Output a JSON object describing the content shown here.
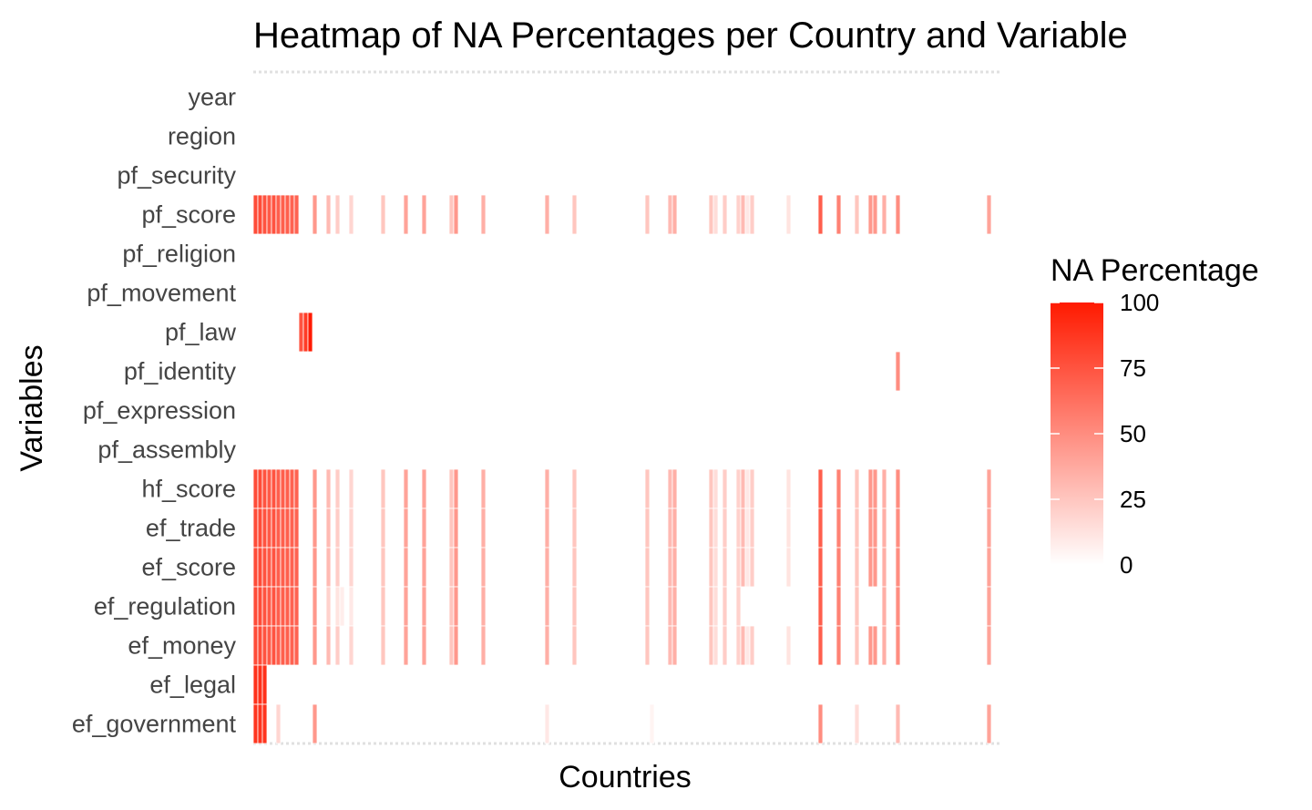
{
  "chart_data": {
    "type": "heatmap",
    "title": "Heatmap of NA Percentages per Country and Variable",
    "xlabel": "Countries",
    "ylabel": "Variables",
    "legend": {
      "title": "NA Percentage",
      "ticks": [
        0,
        25,
        50,
        75,
        100
      ],
      "low_color": "#ffffff",
      "high_color": "#ff1a00",
      "placement": "right"
    },
    "value_range": [
      0,
      100
    ],
    "n_countries": 162,
    "variables": [
      "year",
      "region",
      "pf_security",
      "pf_score",
      "pf_religion",
      "pf_movement",
      "pf_law",
      "pf_identity",
      "pf_expression",
      "pf_assembly",
      "hf_score",
      "ef_trade",
      "ef_score",
      "ef_regulation",
      "ef_money",
      "ef_legal",
      "ef_government"
    ],
    "x_tick_labels_shown": false,
    "grid": false,
    "nonzero_cells": [
      {
        "variable": "pf_score",
        "columns": [
          [
            0,
            1,
            78
          ],
          [
            2,
            2,
            75
          ],
          [
            3,
            3,
            72
          ],
          [
            4,
            4,
            75
          ],
          [
            5,
            5,
            70
          ],
          [
            6,
            6,
            70
          ],
          [
            7,
            7,
            70
          ],
          [
            8,
            8,
            68
          ],
          [
            9,
            9,
            68
          ],
          [
            13,
            13,
            45
          ],
          [
            16,
            16,
            30
          ],
          [
            18,
            18,
            22
          ],
          [
            21,
            21,
            18
          ],
          [
            28,
            28,
            25
          ],
          [
            33,
            33,
            40
          ],
          [
            37,
            37,
            40
          ],
          [
            43,
            43,
            25
          ],
          [
            44,
            44,
            45
          ],
          [
            50,
            50,
            35
          ],
          [
            64,
            64,
            35
          ],
          [
            70,
            70,
            25
          ],
          [
            86,
            86,
            25
          ],
          [
            91,
            91,
            30
          ],
          [
            92,
            92,
            35
          ],
          [
            100,
            100,
            25
          ],
          [
            101,
            101,
            15
          ],
          [
            103,
            103,
            22
          ],
          [
            106,
            106,
            20
          ],
          [
            107,
            107,
            30
          ],
          [
            108,
            108,
            10
          ],
          [
            109,
            109,
            22
          ],
          [
            117,
            117,
            12
          ],
          [
            124,
            124,
            70
          ],
          [
            128,
            128,
            55
          ],
          [
            132,
            132,
            25
          ],
          [
            138,
            138,
            35
          ],
          [
            135,
            136,
            45
          ],
          [
            141,
            141,
            50
          ],
          [
            161,
            161,
            40
          ]
        ]
      },
      {
        "variable": "pf_law",
        "columns": [
          [
            10,
            10,
            75
          ],
          [
            11,
            11,
            85
          ],
          [
            12,
            12,
            100
          ]
        ]
      },
      {
        "variable": "pf_identity",
        "columns": [
          [
            141,
            141,
            50
          ]
        ]
      },
      {
        "variable": "hf_score",
        "columns": [
          [
            0,
            1,
            78
          ],
          [
            2,
            2,
            75
          ],
          [
            3,
            3,
            72
          ],
          [
            4,
            4,
            75
          ],
          [
            5,
            5,
            70
          ],
          [
            6,
            6,
            70
          ],
          [
            7,
            7,
            70
          ],
          [
            8,
            8,
            68
          ],
          [
            9,
            9,
            68
          ],
          [
            13,
            13,
            45
          ],
          [
            16,
            16,
            30
          ],
          [
            18,
            18,
            22
          ],
          [
            21,
            21,
            18
          ],
          [
            28,
            28,
            25
          ],
          [
            33,
            33,
            40
          ],
          [
            37,
            37,
            40
          ],
          [
            43,
            43,
            25
          ],
          [
            44,
            44,
            45
          ],
          [
            50,
            50,
            35
          ],
          [
            64,
            64,
            35
          ],
          [
            70,
            70,
            25
          ],
          [
            86,
            86,
            25
          ],
          [
            91,
            91,
            30
          ],
          [
            92,
            92,
            35
          ],
          [
            100,
            100,
            25
          ],
          [
            101,
            101,
            15
          ],
          [
            103,
            103,
            22
          ],
          [
            106,
            106,
            20
          ],
          [
            107,
            107,
            30
          ],
          [
            108,
            108,
            10
          ],
          [
            109,
            109,
            22
          ],
          [
            117,
            117,
            12
          ],
          [
            124,
            124,
            70
          ],
          [
            128,
            128,
            55
          ],
          [
            132,
            132,
            25
          ],
          [
            138,
            138,
            35
          ],
          [
            135,
            136,
            45
          ],
          [
            141,
            141,
            50
          ],
          [
            161,
            161,
            40
          ]
        ]
      },
      {
        "variable": "ef_trade",
        "columns": [
          [
            0,
            1,
            78
          ],
          [
            2,
            2,
            75
          ],
          [
            3,
            3,
            72
          ],
          [
            4,
            4,
            75
          ],
          [
            5,
            5,
            70
          ],
          [
            6,
            6,
            70
          ],
          [
            7,
            7,
            70
          ],
          [
            8,
            8,
            68
          ],
          [
            9,
            9,
            68
          ],
          [
            13,
            13,
            45
          ],
          [
            16,
            16,
            30
          ],
          [
            18,
            18,
            22
          ],
          [
            21,
            21,
            18
          ],
          [
            28,
            28,
            25
          ],
          [
            33,
            33,
            40
          ],
          [
            37,
            37,
            40
          ],
          [
            43,
            43,
            25
          ],
          [
            44,
            44,
            45
          ],
          [
            50,
            50,
            35
          ],
          [
            64,
            64,
            35
          ],
          [
            70,
            70,
            25
          ],
          [
            86,
            86,
            25
          ],
          [
            91,
            91,
            30
          ],
          [
            92,
            92,
            35
          ],
          [
            100,
            100,
            25
          ],
          [
            101,
            101,
            15
          ],
          [
            103,
            103,
            22
          ],
          [
            106,
            106,
            20
          ],
          [
            107,
            107,
            30
          ],
          [
            108,
            108,
            10
          ],
          [
            109,
            109,
            22
          ],
          [
            117,
            117,
            12
          ],
          [
            124,
            124,
            70
          ],
          [
            128,
            128,
            55
          ],
          [
            132,
            132,
            25
          ],
          [
            138,
            138,
            35
          ],
          [
            135,
            136,
            45
          ],
          [
            141,
            141,
            50
          ],
          [
            161,
            161,
            40
          ]
        ]
      },
      {
        "variable": "ef_score",
        "columns": [
          [
            0,
            1,
            78
          ],
          [
            2,
            2,
            75
          ],
          [
            3,
            3,
            72
          ],
          [
            4,
            4,
            75
          ],
          [
            5,
            5,
            70
          ],
          [
            6,
            6,
            70
          ],
          [
            7,
            7,
            70
          ],
          [
            8,
            8,
            68
          ],
          [
            9,
            9,
            68
          ],
          [
            13,
            13,
            45
          ],
          [
            16,
            16,
            30
          ],
          [
            18,
            18,
            22
          ],
          [
            21,
            21,
            18
          ],
          [
            28,
            28,
            25
          ],
          [
            33,
            33,
            40
          ],
          [
            37,
            37,
            40
          ],
          [
            43,
            43,
            25
          ],
          [
            44,
            44,
            45
          ],
          [
            50,
            50,
            35
          ],
          [
            64,
            64,
            35
          ],
          [
            70,
            70,
            25
          ],
          [
            86,
            86,
            25
          ],
          [
            91,
            91,
            30
          ],
          [
            92,
            92,
            35
          ],
          [
            100,
            100,
            25
          ],
          [
            101,
            101,
            15
          ],
          [
            103,
            103,
            22
          ],
          [
            106,
            106,
            20
          ],
          [
            107,
            107,
            30
          ],
          [
            108,
            108,
            10
          ],
          [
            109,
            109,
            22
          ],
          [
            117,
            117,
            12
          ],
          [
            124,
            124,
            70
          ],
          [
            128,
            128,
            55
          ],
          [
            132,
            132,
            25
          ],
          [
            138,
            138,
            35
          ],
          [
            135,
            136,
            45
          ],
          [
            141,
            141,
            50
          ],
          [
            161,
            161,
            40
          ]
        ]
      },
      {
        "variable": "ef_regulation",
        "columns": [
          [
            0,
            1,
            78
          ],
          [
            2,
            2,
            75
          ],
          [
            3,
            3,
            72
          ],
          [
            4,
            4,
            75
          ],
          [
            5,
            5,
            70
          ],
          [
            6,
            6,
            70
          ],
          [
            7,
            7,
            70
          ],
          [
            8,
            8,
            68
          ],
          [
            9,
            9,
            68
          ],
          [
            13,
            13,
            45
          ],
          [
            16,
            16,
            20
          ],
          [
            18,
            18,
            12
          ],
          [
            19,
            19,
            8
          ],
          [
            21,
            21,
            10
          ],
          [
            28,
            28,
            25
          ],
          [
            33,
            33,
            40
          ],
          [
            37,
            37,
            40
          ],
          [
            43,
            43,
            25
          ],
          [
            44,
            44,
            45
          ],
          [
            50,
            50,
            35
          ],
          [
            64,
            64,
            35
          ],
          [
            70,
            70,
            25
          ],
          [
            86,
            86,
            25
          ],
          [
            91,
            91,
            30
          ],
          [
            92,
            92,
            35
          ],
          [
            100,
            100,
            25
          ],
          [
            101,
            101,
            15
          ],
          [
            103,
            103,
            22
          ],
          [
            106,
            106,
            20
          ],
          [
            124,
            124,
            70
          ],
          [
            128,
            128,
            55
          ],
          [
            132,
            132,
            25
          ],
          [
            138,
            138,
            35
          ],
          [
            141,
            141,
            50
          ],
          [
            161,
            161,
            40
          ]
        ]
      },
      {
        "variable": "ef_money",
        "columns": [
          [
            0,
            1,
            78
          ],
          [
            2,
            2,
            75
          ],
          [
            3,
            3,
            72
          ],
          [
            4,
            4,
            75
          ],
          [
            5,
            5,
            70
          ],
          [
            6,
            6,
            70
          ],
          [
            7,
            7,
            70
          ],
          [
            8,
            8,
            68
          ],
          [
            9,
            9,
            68
          ],
          [
            13,
            13,
            45
          ],
          [
            16,
            16,
            30
          ],
          [
            18,
            18,
            22
          ],
          [
            21,
            21,
            18
          ],
          [
            28,
            28,
            25
          ],
          [
            33,
            33,
            40
          ],
          [
            37,
            37,
            40
          ],
          [
            43,
            43,
            25
          ],
          [
            44,
            44,
            45
          ],
          [
            50,
            50,
            35
          ],
          [
            64,
            64,
            35
          ],
          [
            70,
            70,
            25
          ],
          [
            86,
            86,
            25
          ],
          [
            91,
            91,
            30
          ],
          [
            92,
            92,
            35
          ],
          [
            100,
            100,
            25
          ],
          [
            101,
            101,
            15
          ],
          [
            103,
            103,
            22
          ],
          [
            106,
            106,
            20
          ],
          [
            107,
            107,
            30
          ],
          [
            108,
            108,
            10
          ],
          [
            109,
            109,
            22
          ],
          [
            117,
            117,
            12
          ],
          [
            124,
            124,
            70
          ],
          [
            128,
            128,
            55
          ],
          [
            132,
            132,
            25
          ],
          [
            138,
            138,
            35
          ],
          [
            135,
            136,
            45
          ],
          [
            141,
            141,
            50
          ],
          [
            161,
            161,
            40
          ]
        ]
      },
      {
        "variable": "ef_legal",
        "columns": [
          [
            0,
            2,
            90
          ]
        ]
      },
      {
        "variable": "ef_government",
        "columns": [
          [
            0,
            2,
            88
          ],
          [
            5,
            5,
            18
          ],
          [
            13,
            13,
            45
          ],
          [
            64,
            64,
            10
          ],
          [
            87,
            87,
            5
          ],
          [
            124,
            124,
            50
          ],
          [
            132,
            132,
            15
          ],
          [
            141,
            141,
            30
          ],
          [
            161,
            161,
            40
          ]
        ]
      }
    ]
  }
}
